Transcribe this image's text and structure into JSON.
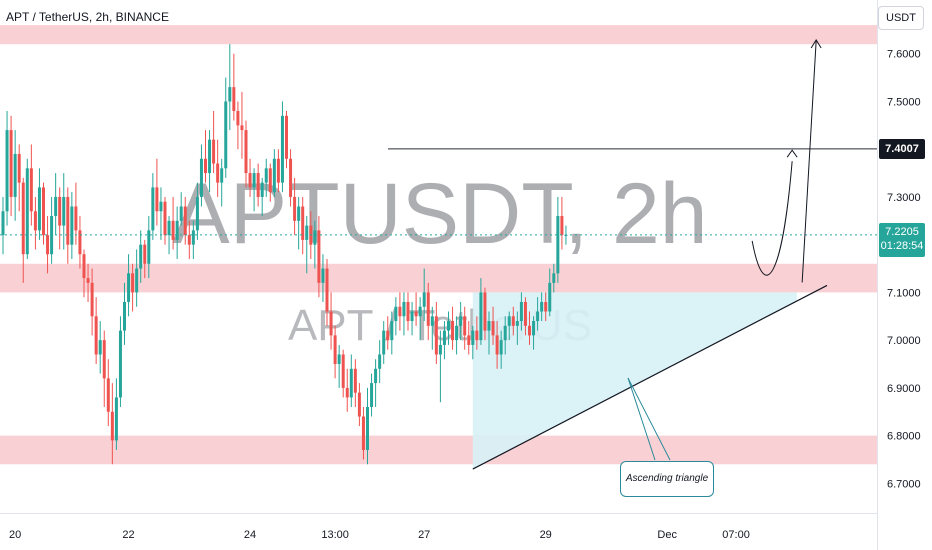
{
  "header": {
    "title": "APT / TetherUS, 2h, BINANCE"
  },
  "currency": "USDT",
  "watermark": {
    "main": "APTUSDT, 2h",
    "sub": "APT / TetherUS"
  },
  "price_tags": {
    "level": "7.4007",
    "last_price": "7.2205",
    "countdown": "01:28:54"
  },
  "annotation": {
    "label": "Ascending triangle"
  },
  "colors": {
    "up": "#26a69a",
    "down": "#ef5350",
    "zone": "#f8c8cc",
    "triangle": "#d7f1f6",
    "axis_text": "#131722"
  },
  "chart_data": {
    "type": "candlestick",
    "symbol": "APTUSDT",
    "interval": "2h",
    "exchange": "BINANCE",
    "ylim": [
      6.64,
      7.7
    ],
    "y_ticks": [
      "7.6000",
      "7.5000",
      "7.3000",
      "7.1000",
      "7.0000",
      "6.9000",
      "6.8000",
      "6.7000"
    ],
    "x_ticks": [
      "20",
      "22",
      "24",
      "13:00",
      "27",
      "29",
      "Dec",
      "07:00"
    ],
    "x_tick_bars": [
      3,
      31,
      61,
      82,
      104,
      134,
      164,
      181
    ],
    "last_price": 7.2205,
    "level_line": 7.4007,
    "supply_demand_zones": [
      [
        7.62,
        7.66
      ],
      [
        7.1,
        7.16
      ],
      [
        6.74,
        6.8
      ]
    ],
    "triangle": {
      "resistance": 7.1,
      "support_start": [
        116,
        6.73
      ],
      "support_end": [
        200,
        7.1
      ],
      "from_bar": 116,
      "to_bar": 196
    },
    "projection": {
      "from_bar": 183,
      "target_1": 7.4,
      "target_2": 7.61
    },
    "ohlc": [
      [
        7.22,
        7.3,
        7.18,
        7.27
      ],
      [
        7.27,
        7.48,
        7.24,
        7.44
      ],
      [
        7.44,
        7.47,
        7.26,
        7.3
      ],
      [
        7.3,
        7.44,
        7.25,
        7.39
      ],
      [
        7.39,
        7.41,
        7.27,
        7.33
      ],
      [
        7.33,
        7.34,
        7.12,
        7.18
      ],
      [
        7.18,
        7.38,
        7.17,
        7.36
      ],
      [
        7.36,
        7.41,
        7.24,
        7.27
      ],
      [
        7.27,
        7.3,
        7.19,
        7.23
      ],
      [
        7.23,
        7.36,
        7.21,
        7.32
      ],
      [
        7.32,
        7.33,
        7.2,
        7.22
      ],
      [
        7.22,
        7.26,
        7.14,
        7.18
      ],
      [
        7.18,
        7.3,
        7.16,
        7.26
      ],
      [
        7.26,
        7.35,
        7.22,
        7.3
      ],
      [
        7.3,
        7.32,
        7.19,
        7.24
      ],
      [
        7.24,
        7.35,
        7.19,
        7.3
      ],
      [
        7.3,
        7.32,
        7.16,
        7.2
      ],
      [
        7.2,
        7.31,
        7.17,
        7.28
      ],
      [
        7.28,
        7.33,
        7.2,
        7.23
      ],
      [
        7.23,
        7.26,
        7.15,
        7.18
      ],
      [
        7.18,
        7.19,
        7.09,
        7.13
      ],
      [
        7.13,
        7.16,
        7.08,
        7.12
      ],
      [
        7.12,
        7.15,
        7.01,
        7.05
      ],
      [
        7.05,
        7.09,
        6.95,
        6.97
      ],
      [
        6.97,
        7.04,
        6.93,
        7.0
      ],
      [
        7.0,
        7.02,
        6.86,
        6.92
      ],
      [
        6.92,
        6.96,
        6.82,
        6.85
      ],
      [
        6.85,
        6.91,
        6.74,
        6.79
      ],
      [
        6.79,
        6.92,
        6.77,
        6.88
      ],
      [
        6.88,
        7.05,
        6.86,
        7.02
      ],
      [
        7.02,
        7.12,
        6.99,
        7.08
      ],
      [
        7.08,
        7.18,
        7.05,
        7.14
      ],
      [
        7.14,
        7.16,
        7.06,
        7.1
      ],
      [
        7.1,
        7.19,
        7.07,
        7.15
      ],
      [
        7.15,
        7.23,
        7.12,
        7.2
      ],
      [
        7.2,
        7.21,
        7.13,
        7.16
      ],
      [
        7.16,
        7.26,
        7.13,
        7.23
      ],
      [
        7.23,
        7.35,
        7.21,
        7.32
      ],
      [
        7.32,
        7.38,
        7.24,
        7.27
      ],
      [
        7.27,
        7.32,
        7.21,
        7.29
      ],
      [
        7.29,
        7.3,
        7.2,
        7.22
      ],
      [
        7.22,
        7.26,
        7.18,
        7.25
      ],
      [
        7.25,
        7.3,
        7.19,
        7.21
      ],
      [
        7.21,
        7.28,
        7.17,
        7.25
      ],
      [
        7.25,
        7.31,
        7.24,
        7.28
      ],
      [
        7.28,
        7.3,
        7.2,
        7.22
      ],
      [
        7.22,
        7.25,
        7.17,
        7.2
      ],
      [
        7.2,
        7.25,
        7.17,
        7.23
      ],
      [
        7.23,
        7.33,
        7.21,
        7.3
      ],
      [
        7.3,
        7.41,
        7.28,
        7.38
      ],
      [
        7.38,
        7.44,
        7.33,
        7.35
      ],
      [
        7.35,
        7.44,
        7.31,
        7.42
      ],
      [
        7.42,
        7.48,
        7.35,
        7.37
      ],
      [
        7.37,
        7.42,
        7.3,
        7.33
      ],
      [
        7.33,
        7.38,
        7.28,
        7.36
      ],
      [
        7.36,
        7.55,
        7.34,
        7.5
      ],
      [
        7.5,
        7.62,
        7.44,
        7.53
      ],
      [
        7.53,
        7.6,
        7.46,
        7.48
      ],
      [
        7.48,
        7.5,
        7.4,
        7.45
      ],
      [
        7.45,
        7.52,
        7.38,
        7.44
      ],
      [
        7.44,
        7.46,
        7.32,
        7.35
      ],
      [
        7.35,
        7.38,
        7.3,
        7.32
      ],
      [
        7.32,
        7.36,
        7.27,
        7.35
      ],
      [
        7.35,
        7.37,
        7.28,
        7.3
      ],
      [
        7.3,
        7.34,
        7.26,
        7.33
      ],
      [
        7.33,
        7.38,
        7.3,
        7.36
      ],
      [
        7.36,
        7.37,
        7.29,
        7.31
      ],
      [
        7.31,
        7.4,
        7.3,
        7.38
      ],
      [
        7.38,
        7.4,
        7.31,
        7.33
      ],
      [
        7.33,
        7.5,
        7.31,
        7.47
      ],
      [
        7.47,
        7.48,
        7.36,
        7.38
      ],
      [
        7.38,
        7.4,
        7.28,
        7.3
      ],
      [
        7.3,
        7.34,
        7.22,
        7.25
      ],
      [
        7.25,
        7.3,
        7.19,
        7.28
      ],
      [
        7.28,
        7.3,
        7.18,
        7.21
      ],
      [
        7.21,
        7.26,
        7.14,
        7.24
      ],
      [
        7.24,
        7.27,
        7.17,
        7.2
      ],
      [
        7.2,
        7.25,
        7.15,
        7.23
      ],
      [
        7.23,
        7.26,
        7.09,
        7.12
      ],
      [
        7.12,
        7.18,
        7.08,
        7.15
      ],
      [
        7.15,
        7.17,
        7.03,
        7.06
      ],
      [
        7.06,
        7.1,
        6.98,
        7.01
      ],
      [
        7.01,
        7.03,
        6.92,
        6.95
      ],
      [
        6.95,
        6.99,
        6.9,
        6.97
      ],
      [
        6.97,
        6.98,
        6.88,
        6.9
      ],
      [
        6.9,
        6.94,
        6.85,
        6.88
      ],
      [
        6.88,
        6.97,
        6.86,
        6.94
      ],
      [
        6.94,
        6.96,
        6.86,
        6.89
      ],
      [
        6.89,
        6.91,
        6.82,
        6.84
      ],
      [
        6.84,
        6.86,
        6.75,
        6.77
      ],
      [
        6.77,
        6.9,
        6.74,
        6.86
      ],
      [
        6.86,
        6.93,
        6.84,
        6.91
      ],
      [
        6.91,
        6.96,
        6.86,
        6.94
      ],
      [
        6.94,
        7.0,
        6.91,
        6.97
      ],
      [
        6.97,
        7.04,
        6.95,
        7.02
      ],
      [
        7.02,
        7.05,
        6.98,
        7.0
      ],
      [
        7.0,
        7.06,
        6.97,
        7.04
      ],
      [
        7.04,
        7.09,
        7.01,
        7.07
      ],
      [
        7.07,
        7.1,
        7.02,
        7.05
      ],
      [
        7.05,
        7.1,
        7.01,
        7.08
      ],
      [
        7.08,
        7.1,
        7.02,
        7.04
      ],
      [
        7.04,
        7.08,
        7.01,
        7.06
      ],
      [
        7.06,
        7.1,
        7.03,
        7.05
      ],
      [
        7.05,
        7.09,
        7.0,
        7.07
      ],
      [
        7.07,
        7.15,
        7.04,
        7.1
      ],
      [
        7.1,
        7.12,
        7.0,
        7.03
      ],
      [
        7.03,
        7.07,
        6.98,
        7.05
      ],
      [
        7.05,
        7.08,
        6.95,
        6.97
      ],
      [
        6.97,
        7.02,
        6.87,
        6.99
      ],
      [
        6.99,
        7.04,
        6.96,
        7.02
      ],
      [
        7.02,
        7.06,
        6.99,
        7.04
      ],
      [
        7.04,
        7.07,
        6.98,
        7.0
      ],
      [
        7.0,
        7.05,
        6.97,
        7.03
      ],
      [
        7.03,
        7.08,
        7.0,
        7.05
      ],
      [
        7.05,
        7.07,
        6.98,
        7.01
      ],
      [
        7.01,
        7.04,
        6.97,
        6.99
      ],
      [
        6.99,
        7.03,
        6.96,
        7.02
      ],
      [
        7.02,
        7.05,
        6.98,
        7.0
      ],
      [
        7.0,
        7.13,
        6.99,
        7.1
      ],
      [
        7.1,
        7.11,
        7.0,
        7.02
      ],
      [
        7.02,
        7.06,
        6.97,
        7.04
      ],
      [
        7.04,
        7.07,
        6.99,
        7.01
      ],
      [
        7.01,
        7.04,
        6.94,
        6.97
      ],
      [
        6.97,
        7.02,
        6.94,
        7.0
      ],
      [
        7.0,
        7.05,
        6.97,
        7.03
      ],
      [
        7.03,
        7.06,
        7.0,
        7.05
      ],
      [
        7.05,
        7.07,
        7.01,
        7.03
      ],
      [
        7.03,
        7.06,
        6.99,
        7.04
      ],
      [
        7.04,
        7.1,
        7.02,
        7.08
      ],
      [
        7.08,
        7.09,
        7.01,
        7.03
      ],
      [
        7.03,
        7.06,
        6.99,
        7.01
      ],
      [
        7.01,
        7.05,
        6.98,
        7.04
      ],
      [
        7.04,
        7.09,
        7.02,
        7.06
      ],
      [
        7.06,
        7.1,
        7.04,
        7.08
      ],
      [
        7.08,
        7.1,
        7.04,
        7.06
      ],
      [
        7.06,
        7.15,
        7.05,
        7.12
      ],
      [
        7.12,
        7.16,
        7.1,
        7.14
      ],
      [
        7.14,
        7.3,
        7.12,
        7.26
      ],
      [
        7.26,
        7.3,
        7.19,
        7.22
      ],
      [
        7.22,
        7.24,
        7.2,
        7.2205
      ]
    ]
  }
}
